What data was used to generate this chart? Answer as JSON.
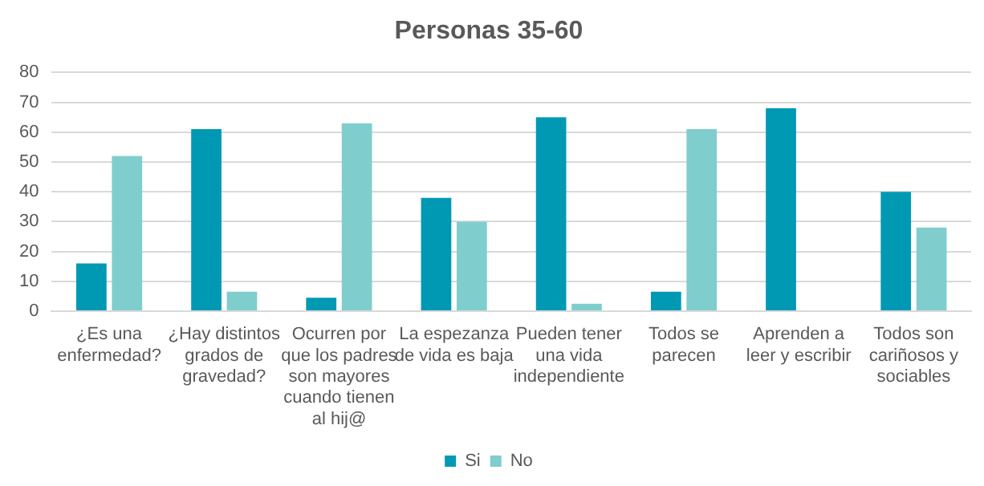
{
  "chart_data": {
    "type": "bar",
    "title": "Personas 35-60",
    "categories": [
      [
        "¿Es una",
        "enfermedad?"
      ],
      [
        "¿Hay distintos",
        "grados de",
        "gravedad?"
      ],
      [
        "Ocurren por",
        "que los padres",
        "son mayores",
        "cuando tienen",
        "al hij@"
      ],
      [
        "La espezanza",
        "de vida es baja"
      ],
      [
        "Pueden tener",
        "una vida",
        "independiente"
      ],
      [
        "Todos se",
        "parecen"
      ],
      [
        "Aprenden a",
        "leer y escribir"
      ],
      [
        "Todos son",
        "cariñosos y",
        "sociables"
      ]
    ],
    "series": [
      {
        "name": "Si",
        "color": "#0099b4",
        "values": [
          16,
          61,
          4.5,
          38,
          65,
          6.5,
          68,
          40
        ]
      },
      {
        "name": "No",
        "color": "#80cdce",
        "values": [
          52,
          6.5,
          63,
          30,
          2.5,
          61,
          null,
          28
        ]
      }
    ],
    "ylim": [
      0,
      80
    ],
    "yticks": [
      0,
      10,
      20,
      30,
      40,
      50,
      60,
      70,
      80
    ],
    "grid": "y",
    "legend": "bottom"
  }
}
